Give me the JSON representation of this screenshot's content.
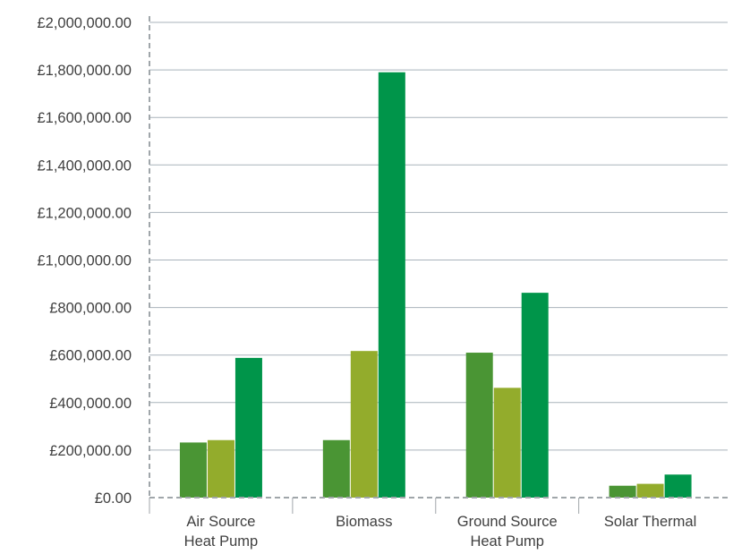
{
  "chart_data": {
    "type": "bar",
    "title": "",
    "xlabel": "",
    "ylabel": "",
    "ylim": [
      0,
      2000000
    ],
    "yticks": [
      0,
      200000,
      400000,
      600000,
      800000,
      1000000,
      1200000,
      1400000,
      1600000,
      1800000,
      2000000
    ],
    "ytick_labels": [
      "£0.00",
      "£200,000.00",
      "£400,000.00",
      "£600,000.00",
      "£800,000.00",
      "£1,000,000.00",
      "£1,200,000.00",
      "£1,400,000.00",
      "£1,600,000.00",
      "£1,800,000.00",
      "£2,000,000.00"
    ],
    "categories": [
      [
        "Air Source",
        "Heat Pump"
      ],
      [
        "Biomass"
      ],
      [
        "Ground Source",
        "Heat Pump"
      ],
      [
        "Solar Thermal"
      ]
    ],
    "series": [
      {
        "values": [
          232000,
          242000,
          610000,
          50000
        ],
        "color": "#4a9534"
      },
      {
        "values": [
          242000,
          617000,
          462000,
          58000
        ],
        "color": "#93ac2c"
      },
      {
        "values": [
          588000,
          1790000,
          862000,
          97000
        ],
        "color": "#00954a"
      }
    ],
    "grid": true,
    "legend": "none",
    "colors": {
      "grid": "#a9b3bb",
      "axis": "#a0a6aa"
    }
  }
}
